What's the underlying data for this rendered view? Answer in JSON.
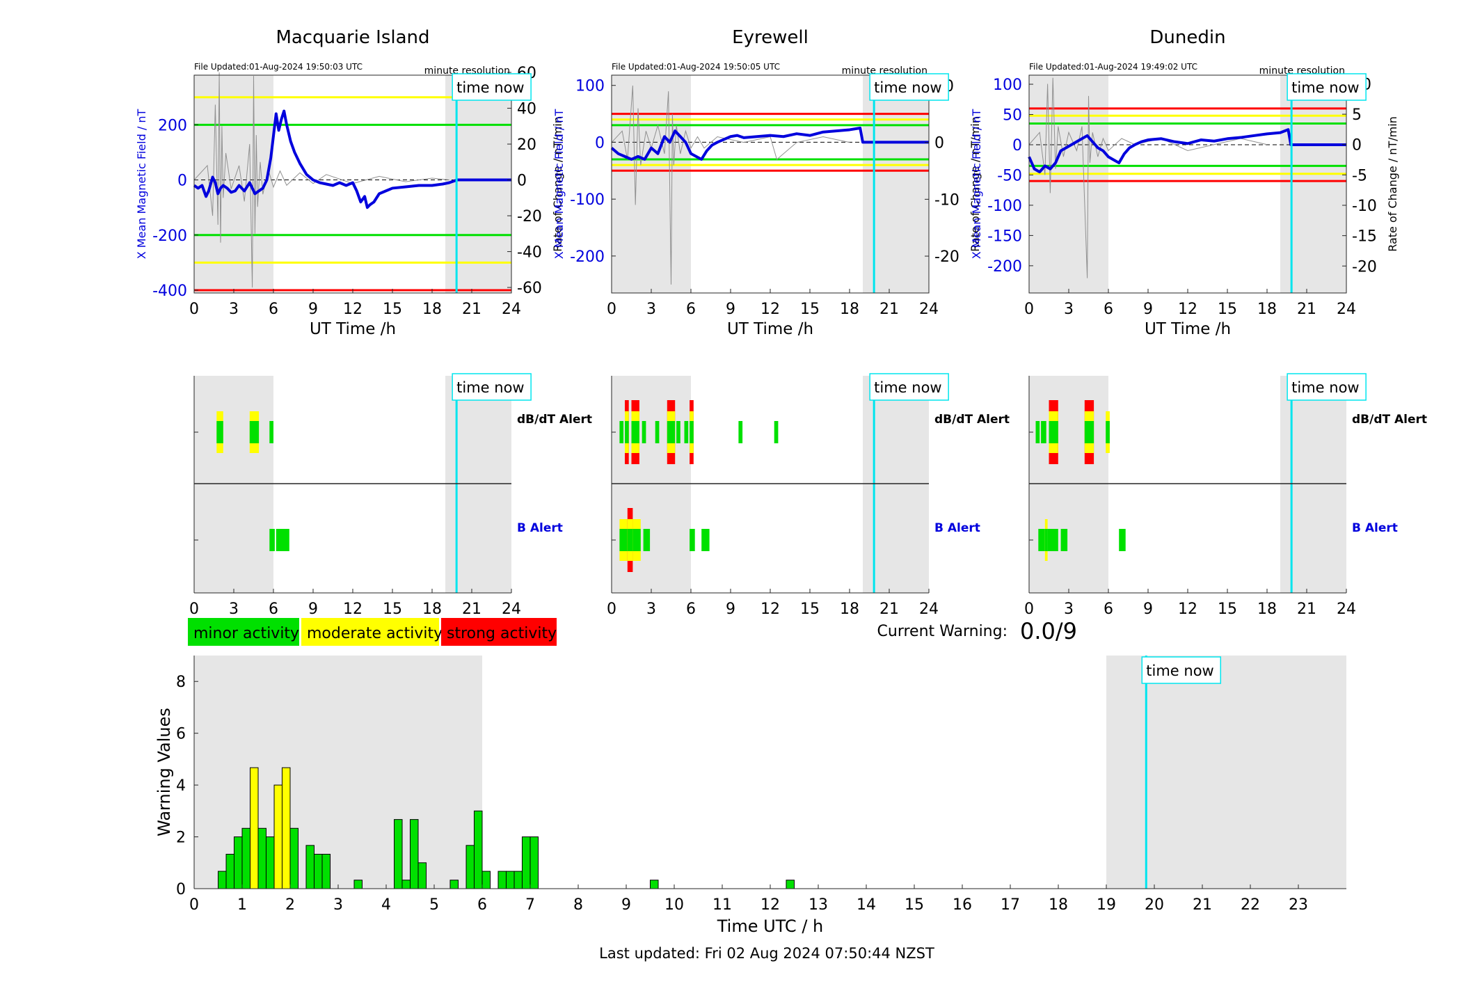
{
  "colors": {
    "shade": "#e6e6e6",
    "now_line": "#00e5ee",
    "mean_line": "#0000dd",
    "axis_blue": "#0000dd",
    "minor": "#00e000",
    "moderate": "#ffff00",
    "strong": "#ff0000",
    "rate_trace": "#909090"
  },
  "legend": {
    "minor": "minor activity",
    "moderate": "moderate activity",
    "strong": "strong activity"
  },
  "current_warning": {
    "label": "Current Warning:",
    "value": "0.0/9"
  },
  "last_updated": "Last updated: Fri 02 Aug 2024 07:50:44 NZST",
  "time_now_label": "time now",
  "minute_resolution_label": "minute resolution",
  "alert_labels": {
    "dbdt": "dB/dT Alert",
    "b": "B Alert"
  },
  "chart_data": [
    {
      "type": "line",
      "title": "Macquarie Island",
      "file_updated": "File Updated:01-Aug-2024 19:50:03 UTC",
      "xlabel": "UT Time /h",
      "ylabel_left": "X Mean Magnetic Field / nT",
      "ylabel_right": "Rate of Change / nT/min",
      "xlim": [
        0,
        24
      ],
      "xticks": [
        0,
        3,
        6,
        9,
        12,
        15,
        18,
        21,
        24
      ],
      "ylim_left": [
        -410,
        380
      ],
      "yticks_left": [
        -400,
        -200,
        0,
        200
      ],
      "ylim_right": [
        -63.08,
        58.46
      ],
      "yticks_right": [
        -60,
        -40,
        -20,
        0,
        20,
        40,
        60
      ],
      "thresholds": [
        {
          "level": 300,
          "color": "moderate"
        },
        {
          "level": 200,
          "color": "minor"
        },
        {
          "level": -200,
          "color": "minor"
        },
        {
          "level": -300,
          "color": "moderate"
        },
        {
          "level": -400,
          "color": "strong"
        }
      ],
      "time_now": 19.85,
      "shade": [
        [
          0,
          6
        ],
        [
          19,
          24
        ]
      ],
      "mean_field": {
        "x": [
          0,
          0.3,
          0.6,
          0.9,
          1.1,
          1.4,
          1.6,
          1.8,
          2.0,
          2.2,
          2.5,
          2.8,
          3.1,
          3.4,
          3.8,
          4.2,
          4.6,
          4.9,
          5.2,
          5.5,
          5.8,
          6.0,
          6.2,
          6.4,
          6.6,
          6.8,
          7.0,
          7.3,
          7.6,
          8.0,
          8.5,
          9.0,
          9.5,
          10.0,
          10.5,
          11.0,
          11.5,
          12.0,
          12.3,
          12.6,
          12.9,
          13.1,
          13.3,
          13.6,
          14.0,
          14.5,
          15.0,
          16.0,
          17.0,
          18.0,
          18.8,
          19.3,
          19.6,
          19.9,
          20.5,
          22.0,
          24.0
        ],
        "y": [
          -20,
          -30,
          -20,
          -60,
          -40,
          10,
          -10,
          -50,
          -30,
          -20,
          -30,
          -45,
          -40,
          -20,
          -40,
          -10,
          -50,
          -40,
          -30,
          0,
          80,
          160,
          240,
          180,
          220,
          250,
          200,
          140,
          100,
          60,
          20,
          0,
          -10,
          -15,
          -20,
          -10,
          -20,
          -10,
          -40,
          -80,
          -60,
          -100,
          -90,
          -80,
          -50,
          -40,
          -30,
          -25,
          -20,
          -20,
          -15,
          -10,
          -5,
          0,
          0,
          0,
          0
        ]
      },
      "rate_of_change": {
        "x": [
          0,
          1.0,
          1.4,
          1.6,
          1.8,
          1.9,
          2.0,
          2.1,
          2.2,
          2.4,
          2.8,
          3.4,
          3.8,
          4.2,
          4.4,
          4.5,
          4.6,
          4.7,
          4.8,
          5.0,
          5.2,
          5.6,
          6.0,
          6.5,
          7.0,
          8.0,
          9.0,
          10.0,
          12.0,
          14.0,
          16.0,
          18.0,
          19.3
        ],
        "y": [
          0,
          8,
          -20,
          42,
          -25,
          60,
          -35,
          30,
          -10,
          15,
          -5,
          8,
          -12,
          20,
          -60,
          58,
          -30,
          25,
          -15,
          10,
          -8,
          6,
          -4,
          5,
          -3,
          4,
          -2,
          3,
          -2,
          2,
          -1,
          1,
          0
        ]
      }
    },
    {
      "type": "line",
      "title": "Eyrewell",
      "file_updated": "File Updated:01-Aug-2024 19:50:05 UTC",
      "xlabel": "UT Time /h",
      "ylabel_left": "X Mean Magnetic Field / nT",
      "ylabel_right": "Rate of Change / nT/min",
      "xlim": [
        0,
        24
      ],
      "xticks": [
        0,
        3,
        6,
        9,
        12,
        15,
        18,
        21,
        24
      ],
      "ylim_left": [
        -265,
        118
      ],
      "yticks_left": [
        -200,
        -100,
        0,
        100
      ],
      "ylim_right": [
        -26.48,
        11.83
      ],
      "yticks_right": [
        -20,
        -10,
        0,
        10
      ],
      "thresholds": [
        {
          "level": 50,
          "color": "strong"
        },
        {
          "level": 40,
          "color": "moderate"
        },
        {
          "level": 30,
          "color": "minor"
        },
        {
          "level": -30,
          "color": "minor"
        },
        {
          "level": -40,
          "color": "moderate"
        },
        {
          "level": -50,
          "color": "strong"
        }
      ],
      "time_now": 19.85,
      "shade": [
        [
          0,
          6
        ],
        [
          19,
          24
        ]
      ],
      "mean_field": {
        "x": [
          0,
          0.5,
          1.0,
          1.5,
          2.0,
          2.5,
          3.0,
          3.5,
          4.0,
          4.4,
          4.8,
          5.2,
          5.6,
          6.0,
          6.4,
          6.8,
          7.2,
          7.6,
          8.0,
          8.5,
          9.0,
          9.5,
          10.0,
          11.0,
          12.0,
          13.0,
          14.0,
          15.0,
          16.0,
          17.0,
          18.0,
          18.8,
          19.0,
          24.0
        ],
        "y": [
          -10,
          -20,
          -25,
          -30,
          -25,
          -30,
          -10,
          -20,
          10,
          0,
          20,
          10,
          0,
          -20,
          -25,
          -30,
          -15,
          -5,
          0,
          5,
          10,
          12,
          8,
          10,
          12,
          10,
          15,
          12,
          18,
          20,
          22,
          25,
          0,
          0
        ]
      },
      "rate_of_change": {
        "x": [
          0,
          0.8,
          1.2,
          1.6,
          1.8,
          2.0,
          2.2,
          2.6,
          3.0,
          3.5,
          4.0,
          4.3,
          4.5,
          4.6,
          4.7,
          4.9,
          5.2,
          5.6,
          6.0,
          6.5,
          7.0,
          8.0,
          10.0,
          12.0,
          12.5,
          14.0,
          16.0,
          18.0
        ],
        "y": [
          0,
          2,
          -3,
          10,
          -11,
          6,
          -4,
          2,
          -1,
          3,
          -2,
          9,
          -25,
          5,
          -4,
          3,
          -2,
          2,
          -1,
          1,
          -1,
          1,
          0,
          1,
          -3,
          0,
          1,
          0
        ]
      }
    },
    {
      "type": "line",
      "title": "Dunedin",
      "file_updated": "File Updated:01-Aug-2024 19:49:02 UTC",
      "xlabel": "UT Time /h",
      "ylabel_left": "X Mean Magnetic Field / nT",
      "ylabel_right": "Rate of Change / nT/min",
      "xlim": [
        0,
        24
      ],
      "xticks": [
        0,
        3,
        6,
        9,
        12,
        15,
        18,
        21,
        24
      ],
      "ylim_left": [
        -245,
        115
      ],
      "yticks_left": [
        -200,
        -150,
        -100,
        -50,
        0,
        50,
        100
      ],
      "ylim_right": [
        -24.44,
        11.43
      ],
      "yticks_right": [
        -20,
        -15,
        -10,
        -5,
        0,
        5,
        10
      ],
      "thresholds": [
        {
          "level": 60,
          "color": "strong"
        },
        {
          "level": 48,
          "color": "moderate"
        },
        {
          "level": 35,
          "color": "minor"
        },
        {
          "level": -35,
          "color": "minor"
        },
        {
          "level": -48,
          "color": "moderate"
        },
        {
          "level": -60,
          "color": "strong"
        }
      ],
      "time_now": 19.85,
      "shade": [
        [
          0,
          6
        ],
        [
          19,
          24
        ]
      ],
      "mean_field": {
        "x": [
          0,
          0.4,
          0.8,
          1.2,
          1.6,
          2.0,
          2.4,
          2.8,
          3.2,
          3.6,
          4.0,
          4.4,
          4.8,
          5.2,
          5.6,
          6.0,
          6.4,
          6.8,
          7.2,
          7.6,
          8.0,
          8.5,
          9.0,
          10.0,
          11.0,
          12.0,
          13.0,
          14.0,
          15.0,
          16.0,
          17.0,
          18.0,
          19.0,
          19.6,
          19.8,
          24.0
        ],
        "y": [
          -20,
          -40,
          -45,
          -35,
          -40,
          -30,
          -10,
          -5,
          0,
          5,
          10,
          15,
          5,
          -5,
          -10,
          -20,
          -25,
          -30,
          -15,
          -5,
          0,
          5,
          8,
          10,
          5,
          2,
          8,
          6,
          10,
          12,
          15,
          18,
          20,
          25,
          0,
          0
        ]
      },
      "rate_of_change": {
        "x": [
          0,
          0.8,
          1.2,
          1.4,
          1.6,
          1.8,
          2.0,
          2.2,
          2.6,
          3.0,
          3.6,
          4.0,
          4.4,
          4.5,
          4.6,
          4.8,
          5.2,
          5.6,
          6.0,
          7.0,
          8.0,
          10.0,
          12.0,
          14.0,
          16.0,
          18.0
        ],
        "y": [
          0,
          2,
          -5,
          10,
          -8,
          11,
          -4,
          3,
          -2,
          2,
          -1,
          3,
          -22,
          8,
          -3,
          2,
          -2,
          1,
          -1,
          1,
          0,
          1,
          -1,
          0,
          1,
          0
        ]
      }
    },
    {
      "type": "heatmap",
      "title": "",
      "station": "Macquarie Island",
      "xlim": [
        0,
        24
      ],
      "xticks": [
        0,
        3,
        6,
        9,
        12,
        15,
        18,
        21,
        24
      ],
      "time_now": 19.85,
      "shade": [
        [
          0,
          6
        ],
        [
          19,
          24
        ]
      ],
      "dbdt_blocks": [
        {
          "start": 1.7,
          "end": 2.2,
          "level": 2
        },
        {
          "start": 4.2,
          "end": 4.9,
          "level": 2
        },
        {
          "start": 5.7,
          "end": 6.0,
          "level": 1
        }
      ],
      "b_blocks": [
        {
          "start": 5.7,
          "end": 6.1,
          "level": 1
        },
        {
          "start": 6.2,
          "end": 7.2,
          "level": 1
        }
      ]
    },
    {
      "type": "heatmap",
      "title": "",
      "station": "Eyrewell",
      "xlim": [
        0,
        24
      ],
      "xticks": [
        0,
        3,
        6,
        9,
        12,
        15,
        18,
        21,
        24
      ],
      "time_now": 19.85,
      "shade": [
        [
          0,
          6
        ],
        [
          19,
          24
        ]
      ],
      "dbdt_blocks": [
        {
          "start": 0.6,
          "end": 0.9,
          "level": 1
        },
        {
          "start": 1.0,
          "end": 1.3,
          "level": 3
        },
        {
          "start": 1.5,
          "end": 2.1,
          "level": 3
        },
        {
          "start": 2.3,
          "end": 2.6,
          "level": 1
        },
        {
          "start": 3.3,
          "end": 3.6,
          "level": 1
        },
        {
          "start": 4.2,
          "end": 4.8,
          "level": 3
        },
        {
          "start": 4.9,
          "end": 5.2,
          "level": 1
        },
        {
          "start": 5.5,
          "end": 5.8,
          "level": 1
        },
        {
          "start": 5.9,
          "end": 6.2,
          "level": 3
        },
        {
          "start": 9.6,
          "end": 9.9,
          "level": 1
        },
        {
          "start": 12.3,
          "end": 12.6,
          "level": 1
        }
      ],
      "b_blocks": [
        {
          "start": 0.6,
          "end": 1.2,
          "level": 2
        },
        {
          "start": 1.2,
          "end": 1.6,
          "level": 3
        },
        {
          "start": 1.6,
          "end": 2.2,
          "level": 2
        },
        {
          "start": 2.4,
          "end": 2.9,
          "level": 1
        },
        {
          "start": 5.9,
          "end": 6.3,
          "level": 1
        },
        {
          "start": 6.8,
          "end": 7.4,
          "level": 1
        }
      ]
    },
    {
      "type": "heatmap",
      "title": "",
      "station": "Dunedin",
      "xlim": [
        0,
        24
      ],
      "xticks": [
        0,
        3,
        6,
        9,
        12,
        15,
        18,
        21,
        24
      ],
      "time_now": 19.85,
      "shade": [
        [
          0,
          6
        ],
        [
          19,
          24
        ]
      ],
      "dbdt_blocks": [
        {
          "start": 0.5,
          "end": 0.8,
          "level": 1
        },
        {
          "start": 0.9,
          "end": 1.3,
          "level": 1
        },
        {
          "start": 1.5,
          "end": 2.2,
          "level": 3
        },
        {
          "start": 4.2,
          "end": 4.9,
          "level": 3
        },
        {
          "start": 5.8,
          "end": 6.1,
          "level": 2
        }
      ],
      "b_blocks": [
        {
          "start": 0.7,
          "end": 1.2,
          "level": 1
        },
        {
          "start": 1.2,
          "end": 1.4,
          "level": 2
        },
        {
          "start": 1.4,
          "end": 2.2,
          "level": 1
        },
        {
          "start": 2.4,
          "end": 2.9,
          "level": 1
        },
        {
          "start": 6.8,
          "end": 7.3,
          "level": 1
        }
      ]
    },
    {
      "type": "bar",
      "title": "",
      "xlabel": "Time UTC / h",
      "ylabel": "Warning Values",
      "xlim": [
        0,
        24
      ],
      "xticks": [
        0,
        1,
        2,
        3,
        4,
        5,
        6,
        7,
        8,
        9,
        10,
        11,
        12,
        13,
        14,
        15,
        16,
        17,
        18,
        19,
        20,
        21,
        22,
        23
      ],
      "ylim": [
        0,
        9
      ],
      "yticks": [
        0,
        2,
        4,
        6,
        8
      ],
      "time_now": 19.83,
      "shade": [
        [
          0,
          6
        ],
        [
          19,
          24
        ]
      ],
      "bin_hours": 0.1667,
      "bars": [
        {
          "x": 0.5,
          "value": 0.67,
          "level": "minor"
        },
        {
          "x": 0.667,
          "value": 1.33,
          "level": "minor"
        },
        {
          "x": 0.833,
          "value": 2.0,
          "level": "minor"
        },
        {
          "x": 1.0,
          "value": 2.33,
          "level": "minor"
        },
        {
          "x": 1.167,
          "value": 4.67,
          "level": "moderate"
        },
        {
          "x": 1.333,
          "value": 2.33,
          "level": "minor"
        },
        {
          "x": 1.5,
          "value": 2.0,
          "level": "minor"
        },
        {
          "x": 1.667,
          "value": 4.0,
          "level": "moderate"
        },
        {
          "x": 1.833,
          "value": 4.67,
          "level": "moderate"
        },
        {
          "x": 2.0,
          "value": 2.33,
          "level": "minor"
        },
        {
          "x": 2.333,
          "value": 1.67,
          "level": "minor"
        },
        {
          "x": 2.5,
          "value": 1.33,
          "level": "minor"
        },
        {
          "x": 2.667,
          "value": 1.33,
          "level": "minor"
        },
        {
          "x": 3.333,
          "value": 0.33,
          "level": "minor"
        },
        {
          "x": 4.167,
          "value": 2.67,
          "level": "minor"
        },
        {
          "x": 4.333,
          "value": 0.33,
          "level": "minor"
        },
        {
          "x": 4.5,
          "value": 2.67,
          "level": "minor"
        },
        {
          "x": 4.667,
          "value": 1.0,
          "level": "minor"
        },
        {
          "x": 5.333,
          "value": 0.33,
          "level": "minor"
        },
        {
          "x": 5.667,
          "value": 1.67,
          "level": "minor"
        },
        {
          "x": 5.833,
          "value": 3.0,
          "level": "minor"
        },
        {
          "x": 6.0,
          "value": 0.67,
          "level": "minor"
        },
        {
          "x": 6.333,
          "value": 0.67,
          "level": "minor"
        },
        {
          "x": 6.5,
          "value": 0.67,
          "level": "minor"
        },
        {
          "x": 6.667,
          "value": 0.67,
          "level": "minor"
        },
        {
          "x": 6.833,
          "value": 2.0,
          "level": "minor"
        },
        {
          "x": 7.0,
          "value": 2.0,
          "level": "minor"
        },
        {
          "x": 9.5,
          "value": 0.33,
          "level": "minor"
        },
        {
          "x": 12.333,
          "value": 0.33,
          "level": "minor"
        }
      ]
    }
  ]
}
